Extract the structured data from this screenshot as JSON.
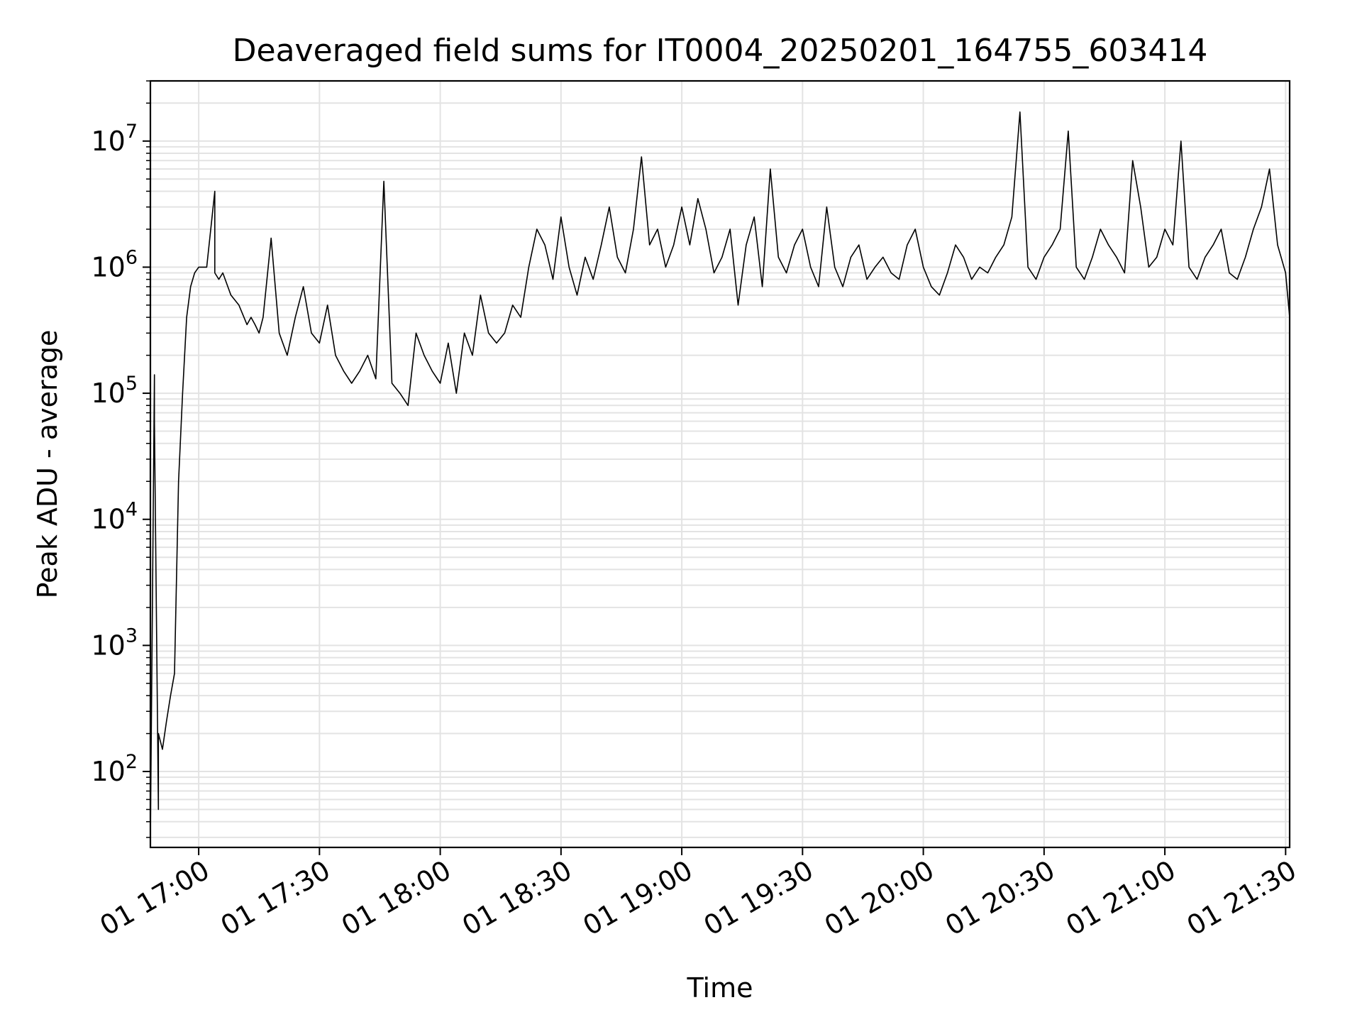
{
  "chart_data": {
    "type": "line",
    "title": "Deaveraged field sums for IT0004_20250201_164755_603414",
    "xlabel": "Time",
    "ylabel": "Peak ADU - average",
    "yscale": "log",
    "ylim": [
      25,
      30000000
    ],
    "xlim": [
      "2025-02-01 16:48",
      "2025-02-01 21:31"
    ],
    "grid": true,
    "line_color": "#000000",
    "grid_color": "#e3e3e3",
    "x_ticks": [
      {
        "t": "2025-02-01 17:00",
        "label": "01 17:00"
      },
      {
        "t": "2025-02-01 17:30",
        "label": "01 17:30"
      },
      {
        "t": "2025-02-01 18:00",
        "label": "01 18:00"
      },
      {
        "t": "2025-02-01 18:30",
        "label": "01 18:30"
      },
      {
        "t": "2025-02-01 19:00",
        "label": "01 19:00"
      },
      {
        "t": "2025-02-01 19:30",
        "label": "01 19:30"
      },
      {
        "t": "2025-02-01 20:00",
        "label": "01 20:00"
      },
      {
        "t": "2025-02-01 20:30",
        "label": "01 20:30"
      },
      {
        "t": "2025-02-01 21:00",
        "label": "01 21:00"
      },
      {
        "t": "2025-02-01 21:30",
        "label": "01 21:30"
      }
    ],
    "y_ticks": [
      {
        "value": 100,
        "base": "10",
        "exp": "2"
      },
      {
        "value": 1000,
        "base": "10",
        "exp": "3"
      },
      {
        "value": 10000,
        "base": "10",
        "exp": "4"
      },
      {
        "value": 100000,
        "base": "10",
        "exp": "5"
      },
      {
        "value": 1000000,
        "base": "10",
        "exp": "6"
      },
      {
        "value": 10000000,
        "base": "10",
        "exp": "7"
      }
    ],
    "series": [
      {
        "x": [
          "2025-02-01 16:48",
          "2025-02-01 16:49",
          "2025-02-01 16:49",
          "2025-02-01 16:50",
          "2025-02-01 16:50",
          "2025-02-01 16:51",
          "2025-02-01 16:52",
          "2025-02-01 16:53",
          "2025-02-01 16:54",
          "2025-02-01 16:55",
          "2025-02-01 16:56",
          "2025-02-01 16:57",
          "2025-02-01 16:58",
          "2025-02-01 16:59",
          "2025-02-01 17:00",
          "2025-02-01 17:02",
          "2025-02-01 17:04",
          "2025-02-01 17:04",
          "2025-02-01 17:05",
          "2025-02-01 17:06",
          "2025-02-01 17:08",
          "2025-02-01 17:10",
          "2025-02-01 17:12",
          "2025-02-01 17:13",
          "2025-02-01 17:14",
          "2025-02-01 17:15",
          "2025-02-01 17:16",
          "2025-02-01 17:18",
          "2025-02-01 17:20",
          "2025-02-01 17:22",
          "2025-02-01 17:24",
          "2025-02-01 17:26",
          "2025-02-01 17:28",
          "2025-02-01 17:30",
          "2025-02-01 17:32",
          "2025-02-01 17:34",
          "2025-02-01 17:36",
          "2025-02-01 17:38",
          "2025-02-01 17:40",
          "2025-02-01 17:42",
          "2025-02-01 17:44",
          "2025-02-01 17:46",
          "2025-02-01 17:48",
          "2025-02-01 17:50",
          "2025-02-01 17:52",
          "2025-02-01 17:54",
          "2025-02-01 17:56",
          "2025-02-01 17:58",
          "2025-02-01 18:00",
          "2025-02-01 18:02",
          "2025-02-01 18:04",
          "2025-02-01 18:06",
          "2025-02-01 18:08",
          "2025-02-01 18:10",
          "2025-02-01 18:12",
          "2025-02-01 18:14",
          "2025-02-01 18:16",
          "2025-02-01 18:18",
          "2025-02-01 18:20",
          "2025-02-01 18:22",
          "2025-02-01 18:24",
          "2025-02-01 18:26",
          "2025-02-01 18:28",
          "2025-02-01 18:30",
          "2025-02-01 18:32",
          "2025-02-01 18:34",
          "2025-02-01 18:36",
          "2025-02-01 18:38",
          "2025-02-01 18:40",
          "2025-02-01 18:42",
          "2025-02-01 18:44",
          "2025-02-01 18:46",
          "2025-02-01 18:48",
          "2025-02-01 18:50",
          "2025-02-01 18:52",
          "2025-02-01 18:54",
          "2025-02-01 18:56",
          "2025-02-01 18:58",
          "2025-02-01 19:00",
          "2025-02-01 19:02",
          "2025-02-01 19:04",
          "2025-02-01 19:06",
          "2025-02-01 19:08",
          "2025-02-01 19:10",
          "2025-02-01 19:12",
          "2025-02-01 19:14",
          "2025-02-01 19:16",
          "2025-02-01 19:18",
          "2025-02-01 19:20",
          "2025-02-01 19:22",
          "2025-02-01 19:24",
          "2025-02-01 19:26",
          "2025-02-01 19:28",
          "2025-02-01 19:30",
          "2025-02-01 19:32",
          "2025-02-01 19:34",
          "2025-02-01 19:36",
          "2025-02-01 19:38",
          "2025-02-01 19:40",
          "2025-02-01 19:42",
          "2025-02-01 19:44",
          "2025-02-01 19:46",
          "2025-02-01 19:48",
          "2025-02-01 19:50",
          "2025-02-01 19:52",
          "2025-02-01 19:54",
          "2025-02-01 19:56",
          "2025-02-01 19:58",
          "2025-02-01 20:00",
          "2025-02-01 20:02",
          "2025-02-01 20:04",
          "2025-02-01 20:06",
          "2025-02-01 20:08",
          "2025-02-01 20:10",
          "2025-02-01 20:12",
          "2025-02-01 20:14",
          "2025-02-01 20:16",
          "2025-02-01 20:18",
          "2025-02-01 20:20",
          "2025-02-01 20:22",
          "2025-02-01 20:24",
          "2025-02-01 20:26",
          "2025-02-01 20:28",
          "2025-02-01 20:30",
          "2025-02-01 20:32",
          "2025-02-01 20:34",
          "2025-02-01 20:36",
          "2025-02-01 20:38",
          "2025-02-01 20:40",
          "2025-02-01 20:42",
          "2025-02-01 20:44",
          "2025-02-01 20:46",
          "2025-02-01 20:48",
          "2025-02-01 20:50",
          "2025-02-01 20:52",
          "2025-02-01 20:54",
          "2025-02-01 20:56",
          "2025-02-01 20:58",
          "2025-02-01 21:00",
          "2025-02-01 21:02",
          "2025-02-01 21:04",
          "2025-02-01 21:06",
          "2025-02-01 21:08",
          "2025-02-01 21:10",
          "2025-02-01 21:12",
          "2025-02-01 21:14",
          "2025-02-01 21:16",
          "2025-02-01 21:18",
          "2025-02-01 21:20",
          "2025-02-01 21:22",
          "2025-02-01 21:24",
          "2025-02-01 21:26",
          "2025-02-01 21:28",
          "2025-02-01 21:30",
          "2025-02-01 21:31"
        ],
        "y": [
          30,
          140000,
          60000,
          50,
          200,
          150,
          250,
          400,
          600,
          20000,
          100000,
          400000,
          700000,
          900000,
          1000000,
          1000000,
          4000000,
          900000,
          800000,
          900000,
          600000,
          500000,
          350000,
          400000,
          350000,
          300000,
          400000,
          1700000,
          300000,
          200000,
          400000,
          700000,
          300000,
          250000,
          500000,
          200000,
          150000,
          120000,
          150000,
          200000,
          130000,
          4800000,
          120000,
          100000,
          80000,
          300000,
          200000,
          150000,
          120000,
          250000,
          100000,
          300000,
          200000,
          600000,
          300000,
          250000,
          300000,
          500000,
          400000,
          1000000,
          2000000,
          1500000,
          800000,
          2500000,
          1000000,
          600000,
          1200000,
          800000,
          1500000,
          3000000,
          1200000,
          900000,
          2000000,
          7500000,
          1500000,
          2000000,
          1000000,
          1500000,
          3000000,
          1500000,
          3500000,
          2000000,
          900000,
          1200000,
          2000000,
          500000,
          1500000,
          2500000,
          700000,
          6000000,
          1200000,
          900000,
          1500000,
          2000000,
          1000000,
          700000,
          3000000,
          1000000,
          700000,
          1200000,
          1500000,
          800000,
          1000000,
          1200000,
          900000,
          800000,
          1500000,
          2000000,
          1000000,
          700000,
          600000,
          900000,
          1500000,
          1200000,
          800000,
          1000000,
          900000,
          1200000,
          1500000,
          2500000,
          17000000,
          1000000,
          800000,
          1200000,
          1500000,
          2000000,
          12000000,
          1000000,
          800000,
          1200000,
          2000000,
          1500000,
          1200000,
          900000,
          7000000,
          3000000,
          1000000,
          1200000,
          2000000,
          1500000,
          10000000,
          1000000,
          800000,
          1200000,
          1500000,
          2000000,
          900000,
          800000,
          1200000,
          2000000,
          3000000,
          6000000,
          1500000,
          900000,
          400000
        ],
        "values_comment": ""
      }
    ]
  }
}
